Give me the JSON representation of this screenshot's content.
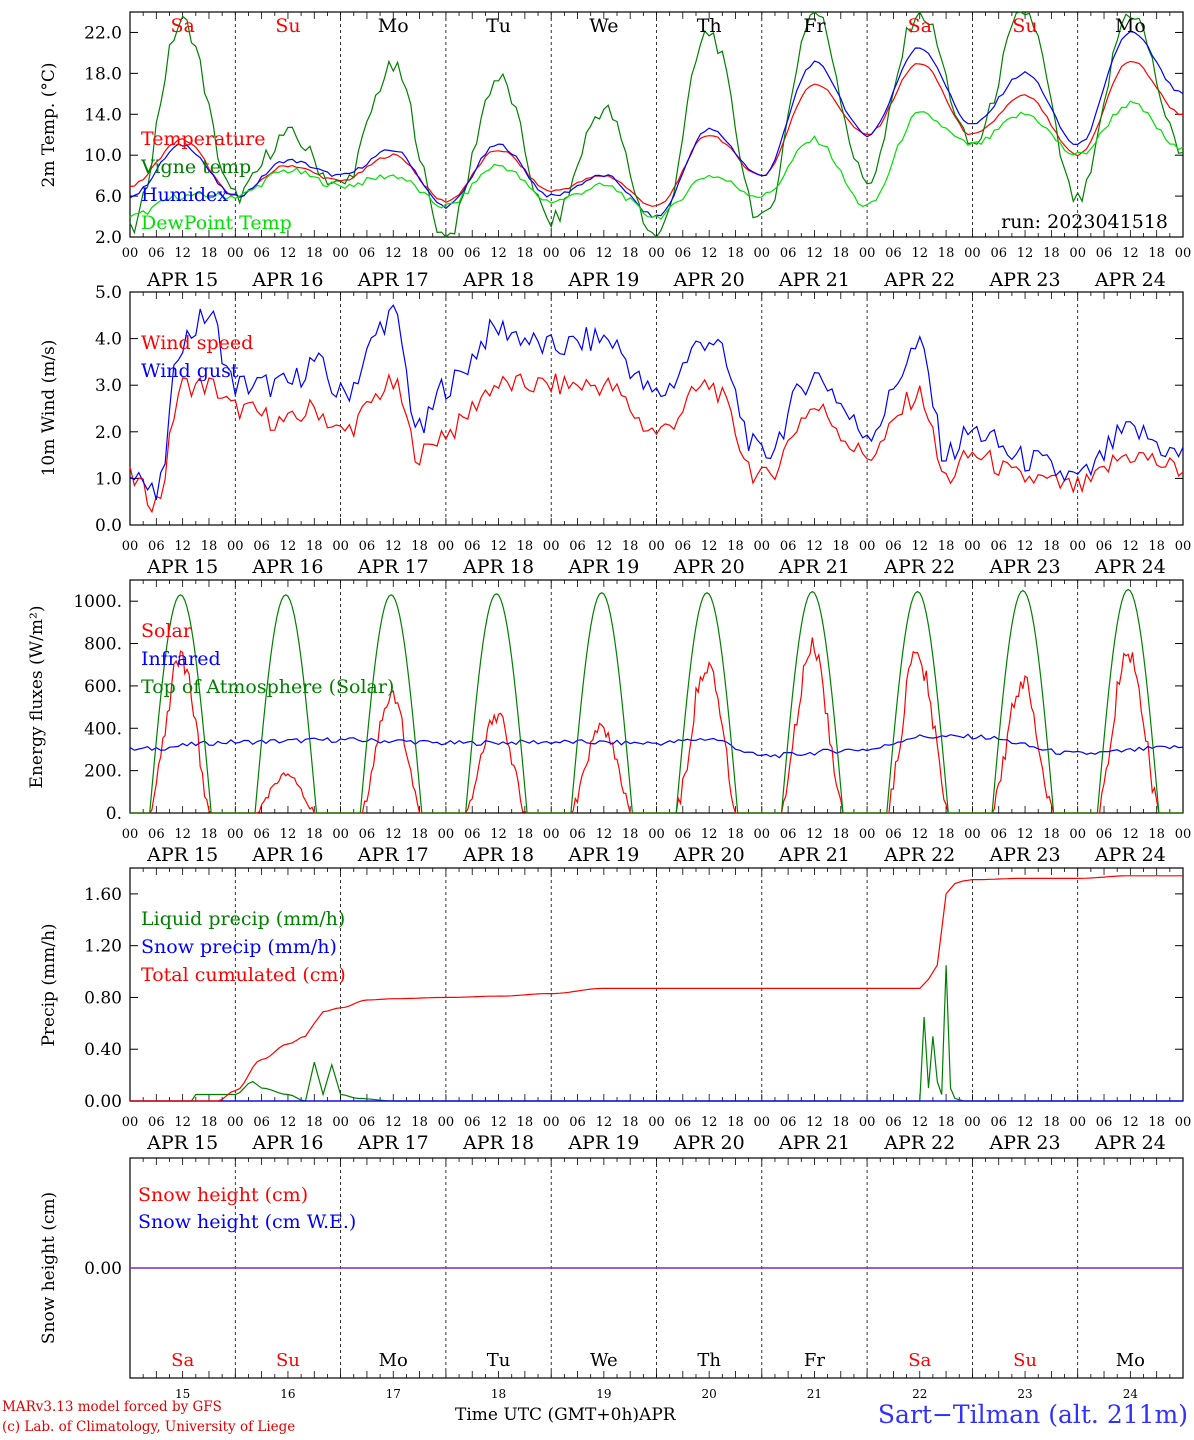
{
  "chart_data": [
    {
      "type": "line",
      "id": "temperature",
      "ylabel": "2m Temp. (°C)",
      "ylim": [
        2,
        24
      ],
      "yticks": [
        "2.0",
        "6.0",
        "10.0",
        "14.0",
        "18.0",
        "22.0"
      ],
      "ytick_values": [
        2,
        6,
        10,
        14,
        18,
        22
      ],
      "annotation": "run: 2023041518",
      "legend_placement": "left",
      "x_unit": "hours since APR 15 00 UTC",
      "series": [
        {
          "name": "Temperature",
          "color": "#ff0000",
          "x": [
            0,
            12,
            24,
            36,
            48,
            60,
            72,
            84,
            96,
            108,
            120,
            132,
            144,
            156,
            168,
            180,
            192,
            204,
            216,
            228,
            240
          ],
          "values": [
            7.0,
            11.5,
            6.0,
            9.0,
            7.5,
            10.0,
            5.5,
            10.5,
            6.5,
            8.0,
            5.0,
            12.0,
            8.0,
            17.0,
            12.0,
            19.0,
            12.0,
            15.8,
            10.0,
            19.2,
            14.0
          ]
        },
        {
          "name": "Vigne temp",
          "color": "#008000",
          "x": [
            0,
            12,
            24,
            36,
            48,
            60,
            72,
            84,
            96,
            108,
            120,
            132,
            144,
            156,
            168,
            180,
            192,
            204,
            216,
            228,
            240
          ],
          "values": [
            2.5,
            23.0,
            6.0,
            12.0,
            7.0,
            18.5,
            2.0,
            17.5,
            3.5,
            14.5,
            2.0,
            22.0,
            3.5,
            24.0,
            7.5,
            24.0,
            11.0,
            24.0,
            5.5,
            24.0,
            10.5
          ]
        },
        {
          "name": "Humidex",
          "color": "#0000ff",
          "x": [
            0,
            12,
            24,
            36,
            48,
            60,
            72,
            84,
            96,
            108,
            120,
            132,
            144,
            156,
            168,
            180,
            192,
            204,
            216,
            228,
            240
          ],
          "values": [
            6.0,
            11.0,
            6.0,
            9.5,
            8.0,
            10.5,
            5.0,
            11.0,
            6.0,
            8.0,
            4.0,
            12.5,
            8.0,
            19.0,
            12.0,
            20.5,
            13.0,
            18.0,
            11.0,
            22.0,
            16.0
          ]
        },
        {
          "name": "DewPoint Temp",
          "color": "#00e000",
          "x": [
            0,
            12,
            24,
            36,
            48,
            60,
            72,
            84,
            96,
            108,
            120,
            132,
            144,
            156,
            168,
            180,
            192,
            204,
            216,
            228,
            240
          ],
          "values": [
            4.0,
            6.0,
            6.0,
            8.5,
            7.0,
            8.0,
            5.0,
            9.0,
            5.5,
            7.0,
            4.0,
            8.0,
            6.0,
            11.5,
            5.0,
            14.0,
            11.0,
            14.0,
            10.0,
            15.0,
            10.5
          ]
        }
      ]
    },
    {
      "type": "line",
      "id": "wind",
      "ylabel": "10m Wind (m/s)",
      "ylim": [
        0,
        5
      ],
      "yticks": [
        "0.0",
        "1.0",
        "2.0",
        "3.0",
        "4.0",
        "5.0"
      ],
      "ytick_values": [
        0,
        1,
        2,
        3,
        4,
        5
      ],
      "legend_placement": "left",
      "x_unit": "hours since APR 15 00 UTC",
      "series": [
        {
          "name": "Wind speed",
          "color": "#ff0000",
          "x": [
            0,
            6,
            12,
            18,
            24,
            36,
            42,
            48,
            60,
            66,
            72,
            84,
            96,
            108,
            120,
            132,
            144,
            156,
            168,
            180,
            186,
            192,
            204,
            216,
            228,
            240
          ],
          "values": [
            1.0,
            0.5,
            3.0,
            3.0,
            2.5,
            2.2,
            2.5,
            2.0,
            3.0,
            1.5,
            2.0,
            3.0,
            3.0,
            3.0,
            2.0,
            3.0,
            1.0,
            2.5,
            1.5,
            2.8,
            1.0,
            1.5,
            1.0,
            0.8,
            1.5,
            1.2
          ]
        },
        {
          "name": "Wind gust",
          "color": "#0000ff",
          "x": [
            0,
            6,
            12,
            18,
            24,
            36,
            42,
            48,
            60,
            66,
            72,
            84,
            96,
            108,
            120,
            132,
            144,
            156,
            168,
            180,
            186,
            192,
            204,
            216,
            228,
            240
          ],
          "values": [
            1.3,
            0.6,
            4.0,
            4.5,
            3.0,
            3.0,
            3.5,
            2.8,
            4.5,
            2.0,
            3.0,
            4.2,
            3.8,
            4.0,
            2.8,
            4.0,
            1.5,
            3.2,
            2.0,
            3.8,
            1.5,
            2.0,
            1.4,
            1.0,
            2.0,
            1.5
          ]
        }
      ]
    },
    {
      "type": "line",
      "id": "energy",
      "ylabel": "Energy fluxes (W/m²)",
      "ylim": [
        0,
        1100
      ],
      "yticks": [
        "0.",
        "200.",
        "400.",
        "600.",
        "800.",
        "1000."
      ],
      "ytick_values": [
        0,
        200,
        400,
        600,
        800,
        1000
      ],
      "legend_placement": "left",
      "x_unit": "hours since APR 15 00 UTC",
      "day_peaks": {
        "top_of_atmosphere": [
          1030,
          1030,
          1030,
          1035,
          1040,
          1040,
          1045,
          1045,
          1050,
          1055
        ],
        "solar": [
          710,
          180,
          540,
          460,
          400,
          700,
          780,
          750,
          620,
          760
        ]
      },
      "series": [
        {
          "name": "Solar",
          "color": "#ff0000"
        },
        {
          "name": "Infrared",
          "color": "#0000ff",
          "x": [
            0,
            24,
            48,
            60,
            72,
            96,
            120,
            132,
            144,
            168,
            180,
            192,
            216,
            240
          ],
          "values": [
            300,
            335,
            345,
            340,
            330,
            335,
            330,
            350,
            270,
            300,
            360,
            360,
            280,
            310
          ]
        },
        {
          "name": "Top of Atmosphere (Solar)",
          "color": "#008000"
        }
      ]
    },
    {
      "type": "line",
      "id": "precip",
      "ylabel": "Precip (mm/h)",
      "ylim": [
        0,
        1.8
      ],
      "yticks": [
        "0.00",
        "0.40",
        "0.80",
        "1.20",
        "1.60"
      ],
      "ytick_values": [
        0,
        0.4,
        0.8,
        1.2,
        1.6
      ],
      "legend_placement": "left",
      "x_unit": "hours since APR 15 00 UTC",
      "series": [
        {
          "name": "Liquid precip (mm/h)",
          "color": "#008000",
          "x": [
            0,
            14,
            15,
            24,
            28,
            30,
            36,
            40,
            42,
            44,
            46,
            48,
            52,
            60,
            180,
            181,
            182,
            183,
            184,
            185,
            186,
            187,
            188,
            190,
            240
          ],
          "values": [
            0,
            0,
            0.05,
            0.05,
            0.15,
            0.1,
            0.05,
            0.0,
            0.3,
            0.05,
            0.28,
            0.05,
            0.02,
            0,
            0,
            0.65,
            0.1,
            0.5,
            0.15,
            0.05,
            1.05,
            0.1,
            0.02,
            0,
            0
          ]
        },
        {
          "name": "Snow precip (mm/h)",
          "color": "#0000ff",
          "x": [
            0,
            240
          ],
          "values": [
            0,
            0
          ]
        },
        {
          "name": "Total cumulated (cm)",
          "color": "#ff0000",
          "x": [
            0,
            20,
            24,
            30,
            36,
            40,
            42,
            44,
            48,
            54,
            60,
            72,
            84,
            96,
            108,
            120,
            132,
            144,
            156,
            168,
            180,
            182,
            184,
            186,
            188,
            190,
            192,
            204,
            216,
            228,
            240
          ],
          "values": [
            0,
            0,
            0.08,
            0.32,
            0.44,
            0.5,
            0.6,
            0.69,
            0.72,
            0.78,
            0.79,
            0.8,
            0.81,
            0.83,
            0.87,
            0.87,
            0.87,
            0.87,
            0.87,
            0.87,
            0.87,
            0.94,
            1.05,
            1.6,
            1.68,
            1.7,
            1.71,
            1.72,
            1.72,
            1.74,
            1.74
          ]
        }
      ]
    },
    {
      "type": "line",
      "id": "snow",
      "ylabel": "Snow height (cm)",
      "ylim": [
        -1,
        1
      ],
      "yticks": [
        "0.00"
      ],
      "ytick_values": [
        0
      ],
      "legend_placement": "left",
      "series": [
        {
          "name": "Snow height (cm)",
          "color": "#ff0000",
          "x": [
            0,
            240
          ],
          "values": [
            0,
            0
          ]
        },
        {
          "name": "Snow height (cm W.E.)",
          "color": "#0000ff",
          "x": [
            0,
            240
          ],
          "values": [
            0,
            0
          ]
        }
      ]
    }
  ],
  "axis": {
    "hour_ticks": [
      "00",
      "06",
      "12",
      "18"
    ],
    "end_tick": "00",
    "dates": [
      "APR 15",
      "APR 16",
      "APR 17",
      "APR 18",
      "APR 19",
      "APR 20",
      "APR 21",
      "APR 22",
      "APR 23",
      "APR 24"
    ],
    "weekdays": [
      "Sa",
      "Su",
      "Mo",
      "Tu",
      "We",
      "Th",
      "Fr",
      "Sa",
      "Su",
      "Mo"
    ],
    "weekday_colors": [
      "#ff0000",
      "#ff0000",
      "#000000",
      "#000000",
      "#000000",
      "#000000",
      "#000000",
      "#ff0000",
      "#ff0000",
      "#000000"
    ],
    "day_numbers": [
      "15",
      "16",
      "17",
      "18",
      "19",
      "20",
      "21",
      "22",
      "23",
      "24"
    ],
    "xlabel": "Time UTC (GMT+0h)",
    "month": "APR"
  },
  "footer": {
    "model_line": "MARv3.13 model forced by GFS",
    "copyright_line": "(c) Lab. of Climatology, University of Liege",
    "station": "Sart−Tilman (alt. 211m)"
  }
}
